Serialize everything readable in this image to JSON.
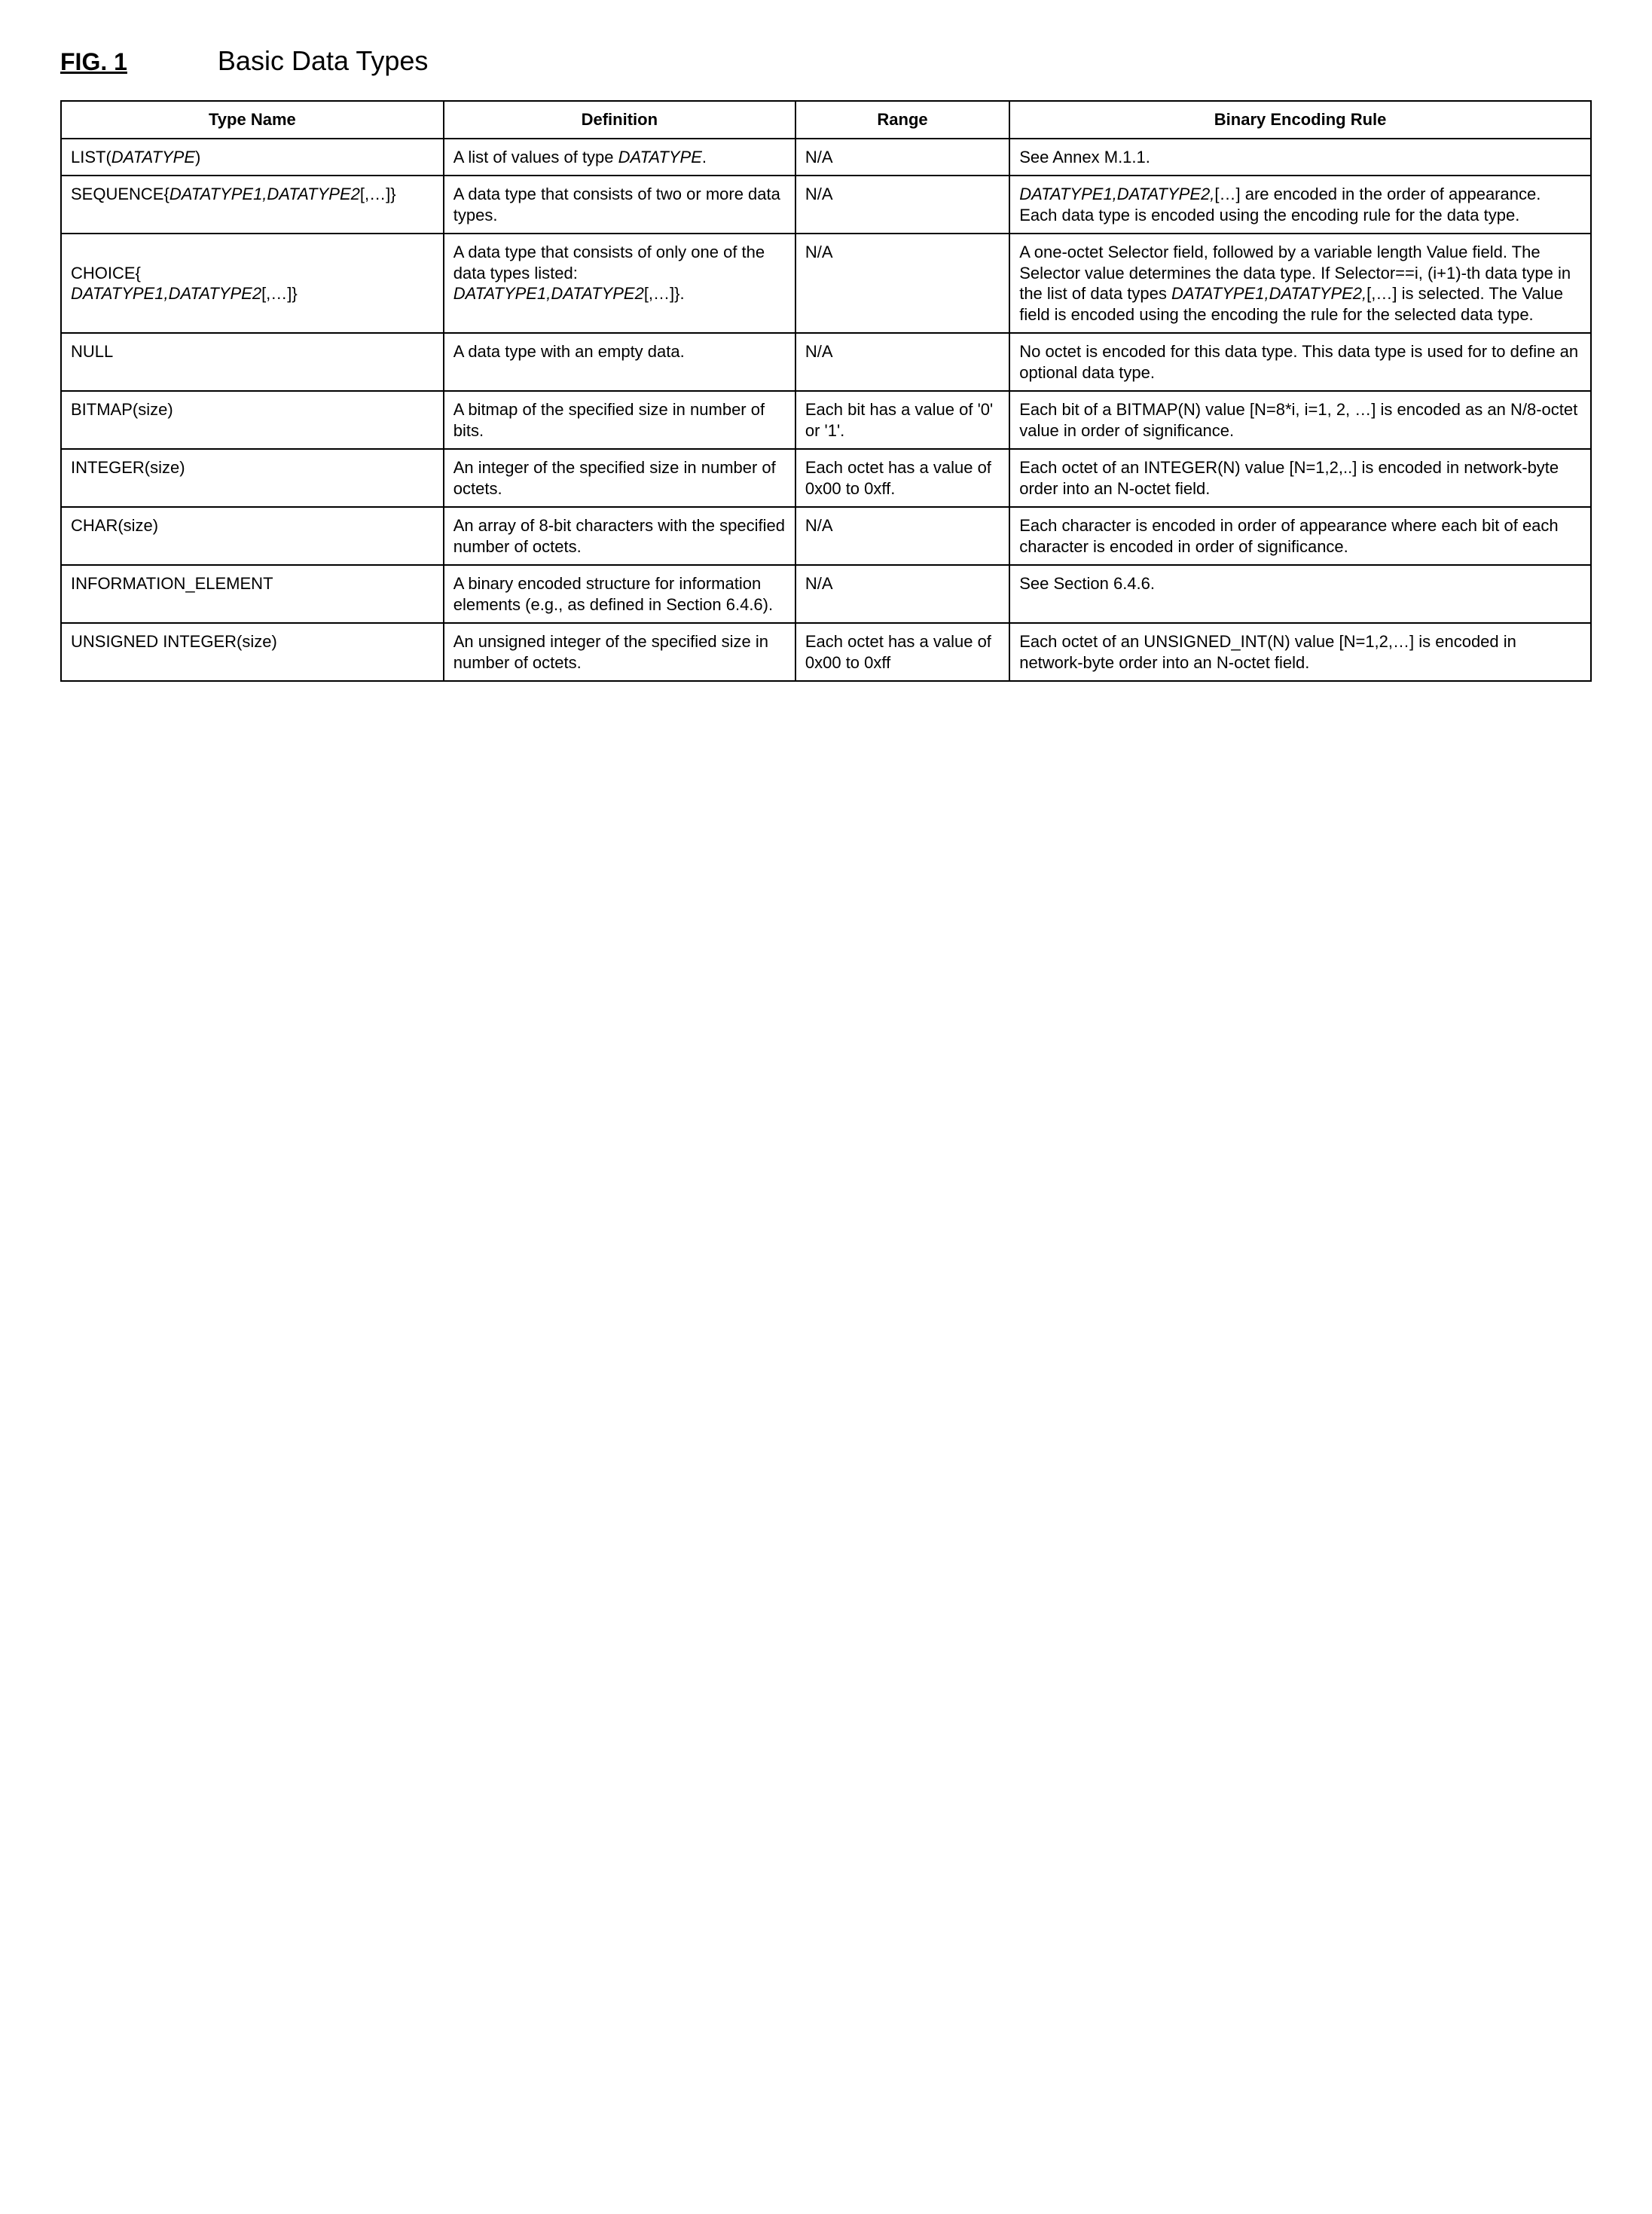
{
  "figure_label": "FIG. 1",
  "title": "Basic Data Types",
  "columns": [
    "Type Name",
    "Definition",
    "Range",
    "Binary Encoding Rule"
  ],
  "col_widths_pct": [
    25,
    23,
    14,
    38
  ],
  "border_color": "#000000",
  "background_color": "#ffffff",
  "header_fontsize_pt": 22,
  "cell_fontsize_pt": 22,
  "rows": [
    {
      "type_prefix": "LIST(",
      "type_ital": "DATATYPE",
      "type_suffix": ")",
      "definition_pre": "A list of values of type ",
      "definition_ital": "DATATYPE",
      "definition_post": ".",
      "range": "N/A",
      "rule": "See Annex M.1.1."
    },
    {
      "type_prefix": "SEQUENCE{",
      "type_ital": "DATATYPE1,DATATYPE2",
      "type_suffix": "[,…]}",
      "definition_pre": "A data type that consists of two or more data types.",
      "definition_ital": "",
      "definition_post": "",
      "range": "N/A",
      "rule_ital": "DATATYPE1,DATATYPE2,",
      "rule_post": "[…] are encoded in the order of appearance. Each data type is encoded using the encoding rule for the data type."
    },
    {
      "type_prefix": "CHOICE{\n",
      "type_ital": "DATATYPE1,DATATYPE2",
      "type_suffix": "[,…]}",
      "definition_pre": "A data type that consists of only one of the data types listed: ",
      "definition_ital": "DATATYPE1,DATATYPE2",
      "definition_post": "[,…]}.",
      "range": "N/A",
      "rule_pre": "A one-octet Selector field, followed by a variable length Value field. The Selector value determines the data type. If Selector==i, (i+1)-th data type in the list of data types ",
      "rule_ital": "DATATYPE1,DATATYPE2,",
      "rule_post": "[,…] is selected. The Value field is encoded using the encoding the rule for the selected data type."
    },
    {
      "type_prefix": "NULL",
      "type_ital": "",
      "type_suffix": "",
      "definition_pre": "A data type with an empty data.",
      "definition_ital": "",
      "definition_post": "",
      "range": "N/A",
      "rule": "No octet is encoded for this data type. This data type is used for to define an optional data type."
    },
    {
      "type_prefix": "BITMAP(size)",
      "type_ital": "",
      "type_suffix": "",
      "definition_pre": "A bitmap of the specified size in number of bits.",
      "definition_ital": "",
      "definition_post": "",
      "range": "Each bit has a value of '0' or '1'.",
      "rule": "Each bit of a BITMAP(N) value [N=8*i, i=1, 2, …] is encoded as an N/8-octet value in order of significance."
    },
    {
      "type_prefix": "INTEGER(size)",
      "type_ital": "",
      "type_suffix": "",
      "definition_pre": "An integer of the specified size in number of octets.",
      "definition_ital": "",
      "definition_post": "",
      "range": "Each octet has a value of 0x00 to 0xff.",
      "rule": "Each octet of an INTEGER(N) value [N=1,2,..] is encoded in network-byte order into an N-octet field."
    },
    {
      "type_prefix": "CHAR(size)",
      "type_ital": "",
      "type_suffix": "",
      "definition_pre": "An array of 8-bit characters with the specified number of octets.",
      "definition_ital": "",
      "definition_post": "",
      "range": "N/A",
      "rule": "Each character is encoded in order of appearance where each bit of each character is encoded in order of significance."
    },
    {
      "type_prefix": "INFORMATION_ELEMENT",
      "type_ital": "",
      "type_suffix": "",
      "definition_pre": "A binary encoded structure for information elements (e.g., as defined in Section 6.4.6).",
      "definition_ital": "",
      "definition_post": "",
      "range": "N/A",
      "rule": "See Section 6.4.6."
    },
    {
      "type_prefix": "UNSIGNED INTEGER(size)",
      "type_ital": "",
      "type_suffix": "",
      "definition_pre": "An unsigned integer of the specified size in number of octets.",
      "definition_ital": "",
      "definition_post": "",
      "range": "Each octet has a value of 0x00 to 0xff",
      "rule": "Each octet of an UNSIGNED_INT(N) value [N=1,2,…] is encoded in network-byte order into an N-octet field."
    }
  ]
}
